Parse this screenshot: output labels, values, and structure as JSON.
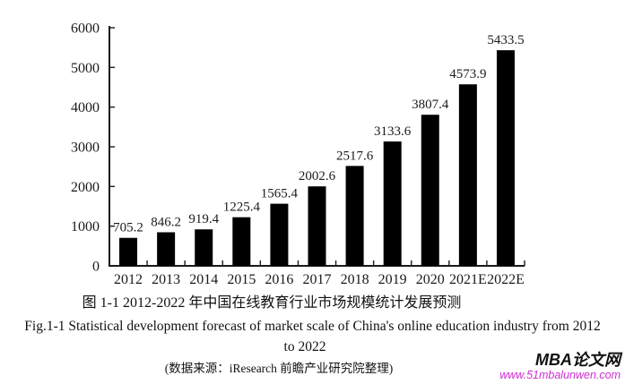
{
  "chart_data": {
    "type": "bar",
    "title_cn": "图 1-1 2012-2022 年中国在线教育行业市场规模统计发展预测",
    "caption_en_line1": "Fig.1-1 Statistical development forecast of market scale of China's online education industry from 2012",
    "caption_en_line2": "to 2022",
    "source_note": "(数据来源：iResearch 前瞻产业研究院整理)",
    "categories": [
      "2012",
      "2013",
      "2014",
      "2015",
      "2016",
      "2017",
      "2018",
      "2019",
      "2020",
      "2021E",
      "2022E"
    ],
    "values": [
      705.2,
      846.2,
      919.4,
      1225.4,
      1565.4,
      2002.6,
      2517.6,
      3133.6,
      3807.4,
      4573.9,
      5433.5
    ],
    "ylim": [
      0,
      6000
    ],
    "ytick_step": 1000,
    "yticks": [
      0,
      1000,
      2000,
      3000,
      4000,
      5000,
      6000
    ],
    "bar_color": "#000000",
    "axis_color": "#1a1a1a",
    "value_labels_shown": true,
    "grid": "off",
    "legend": "none"
  },
  "watermark": {
    "brand": "MBA论文网",
    "url": "www.51mbalunwen.com",
    "url_color": "#cf2fd2"
  }
}
